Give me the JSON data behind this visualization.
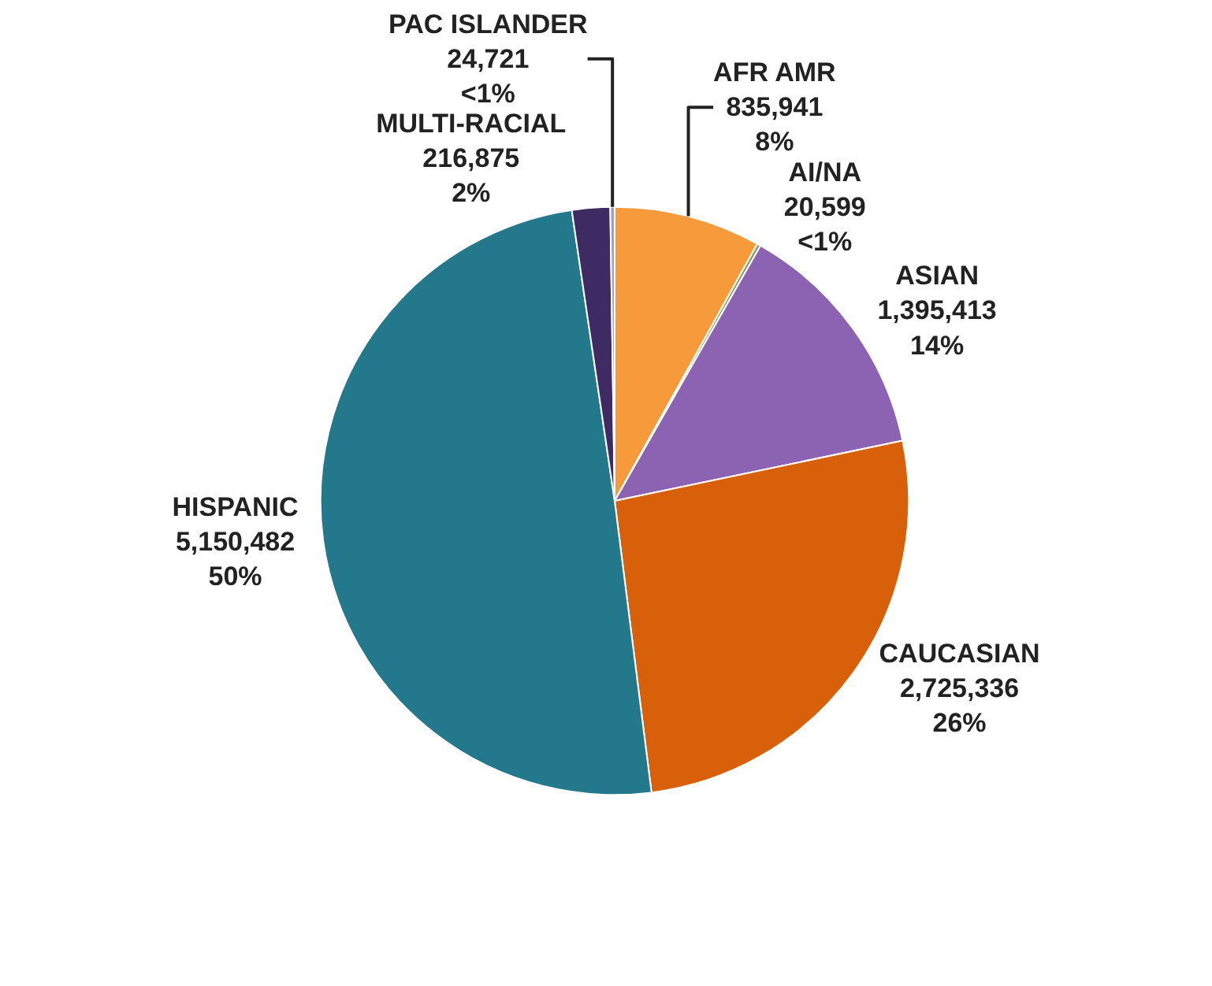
{
  "chart_data": {
    "type": "pie",
    "categories": [
      "AFR AMR",
      "AI/NA",
      "ASIAN",
      "CAUCASIAN",
      "HISPANIC",
      "MULTI-RACIAL",
      "PAC ISLANDER"
    ],
    "values": [
      835941,
      20599,
      1395413,
      2725336,
      5150482,
      216875,
      24721
    ],
    "value_labels": [
      "835,941\n8%",
      "20,599\n<1%",
      "1,395,413\n14%",
      "2,725,336\n26%",
      "5,150,482\n50%",
      "216,875\n2%",
      "24,721\n<1%"
    ],
    "colors": [
      "#f79a3c",
      "#8a9a5b",
      "#8c62b3",
      "#d9600a",
      "#23798b",
      "#3f2b63",
      "#9aa3b0"
    ],
    "legend": false
  }
}
